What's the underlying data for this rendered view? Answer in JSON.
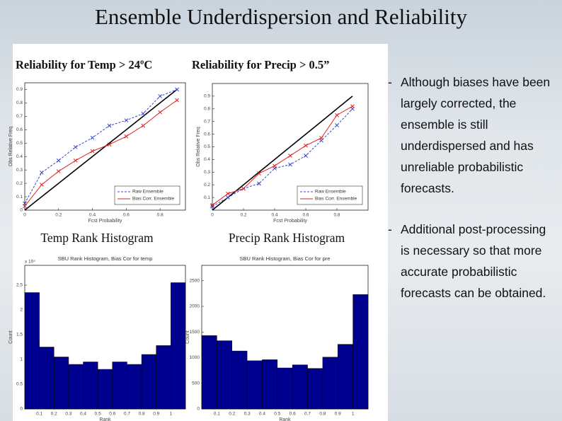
{
  "title": "Ensemble Underdispersion and Reliability",
  "bullets": [
    "Although biases have been largely corrected, the ensemble is still underdispersed and has unreliable probabilistic forecasts.",
    "Additional post-processing is necessary so that more accurate probabilistic forecasts can be obtained."
  ],
  "chart_data": [
    {
      "type": "line",
      "title": "Reliability for Temp > 24ºC",
      "x_label": "Fcst Probability",
      "y_label": "Obs Relative Freq",
      "x": [
        0,
        0.1,
        0.2,
        0.3,
        0.4,
        0.5,
        0.6,
        0.7,
        0.8,
        0.9
      ],
      "series": [
        {
          "color": "#000000",
          "values": [
            0,
            0.1,
            0.2,
            0.3,
            0.4,
            0.5,
            0.6,
            0.7,
            0.8,
            0.9
          ]
        },
        {
          "name": "Raw Ensemble",
          "color": "#3344cc",
          "values": [
            0.05,
            0.28,
            0.37,
            0.47,
            0.54,
            0.63,
            0.67,
            0.72,
            0.85,
            0.9
          ]
        },
        {
          "name": "Bias Corr. Ensemble",
          "color": "#dd2222",
          "values": [
            0.03,
            0.19,
            0.29,
            0.37,
            0.44,
            0.49,
            0.55,
            0.63,
            0.73,
            0.82
          ]
        }
      ],
      "xlim": [
        0,
        0.95
      ],
      "ylim": [
        0,
        0.95
      ],
      "xticks": [
        0,
        0.2,
        0.4,
        0.6,
        0.8
      ],
      "yticks": [
        0,
        0.1,
        0.2,
        0.3,
        0.4,
        0.5,
        0.6,
        0.7,
        0.8,
        0.9
      ],
      "legend": "lower right"
    },
    {
      "type": "line",
      "title": "Reliability for Precip > 0.5”",
      "x_label": "Fcst Probability",
      "y_label": "Obs Relative Freq",
      "x": [
        0,
        0.1,
        0.2,
        0.3,
        0.4,
        0.5,
        0.6,
        0.7,
        0.8,
        0.9
      ],
      "series": [
        {
          "color": "#000000",
          "values": [
            0,
            0.1,
            0.2,
            0.3,
            0.4,
            0.5,
            0.6,
            0.7,
            0.8,
            0.9
          ]
        },
        {
          "name": "Raw Ensemble",
          "color": "#3344cc",
          "values": [
            0.03,
            0.1,
            0.17,
            0.21,
            0.33,
            0.36,
            0.43,
            0.55,
            0.67,
            0.8
          ]
        },
        {
          "name": "Bias Corr. Ensemble",
          "color": "#dd2222",
          "values": [
            0.04,
            0.13,
            0.17,
            0.29,
            0.35,
            0.43,
            0.51,
            0.57,
            0.75,
            0.82
          ]
        }
      ],
      "xlim": [
        0,
        1
      ],
      "ylim": [
        0,
        1
      ],
      "xticks": [
        0,
        0.2,
        0.4,
        0.6,
        0.8
      ],
      "yticks": [
        0.1,
        0.2,
        0.3,
        0.4,
        0.5,
        0.6,
        0.7,
        0.8,
        0.9
      ],
      "legend": "lower right"
    },
    {
      "type": "histogram",
      "title": "Temp Rank Histogram",
      "subtitle": "SBU Rank Histogram, Bias Cor for temp",
      "x_label": "Rank",
      "y_label": "Count",
      "y_multiplier": "x 10⁴",
      "color": "#00008f",
      "bins": [
        0,
        0.1,
        0.2,
        0.3,
        0.4,
        0.5,
        0.6,
        0.7,
        0.8,
        0.9,
        1,
        1.1
      ],
      "values": [
        2.35,
        1.25,
        1.05,
        0.9,
        0.95,
        0.8,
        0.95,
        0.9,
        1.1,
        1.28,
        2.55
      ],
      "xlim": [
        0,
        1.1
      ],
      "ylim": [
        0,
        2.9
      ],
      "xticks": [
        0.1,
        0.2,
        0.3,
        0.4,
        0.5,
        0.6,
        0.7,
        0.8,
        0.9,
        1
      ],
      "yticks": [
        0,
        0.5,
        1,
        1.5,
        2,
        2.5
      ]
    },
    {
      "type": "histogram",
      "title": "Precip Rank Histogram",
      "subtitle": "SBU Rank Histogram, Bias Cor for pre",
      "x_label": "Rank",
      "y_label": "Count",
      "color": "#00008f",
      "bins": [
        0,
        0.1,
        0.2,
        0.3,
        0.4,
        0.5,
        0.6,
        0.7,
        0.8,
        0.9,
        1,
        1.1
      ],
      "values": [
        1430,
        1330,
        1130,
        940,
        960,
        800,
        860,
        790,
        1010,
        1260,
        2230
      ],
      "xlim": [
        0,
        1.1
      ],
      "ylim": [
        0,
        2800
      ],
      "xticks": [
        0.1,
        0.2,
        0.3,
        0.4,
        0.5,
        0.6,
        0.7,
        0.8,
        0.9,
        1
      ],
      "yticks": [
        0,
        500,
        1000,
        1500,
        2000,
        2500
      ]
    }
  ]
}
